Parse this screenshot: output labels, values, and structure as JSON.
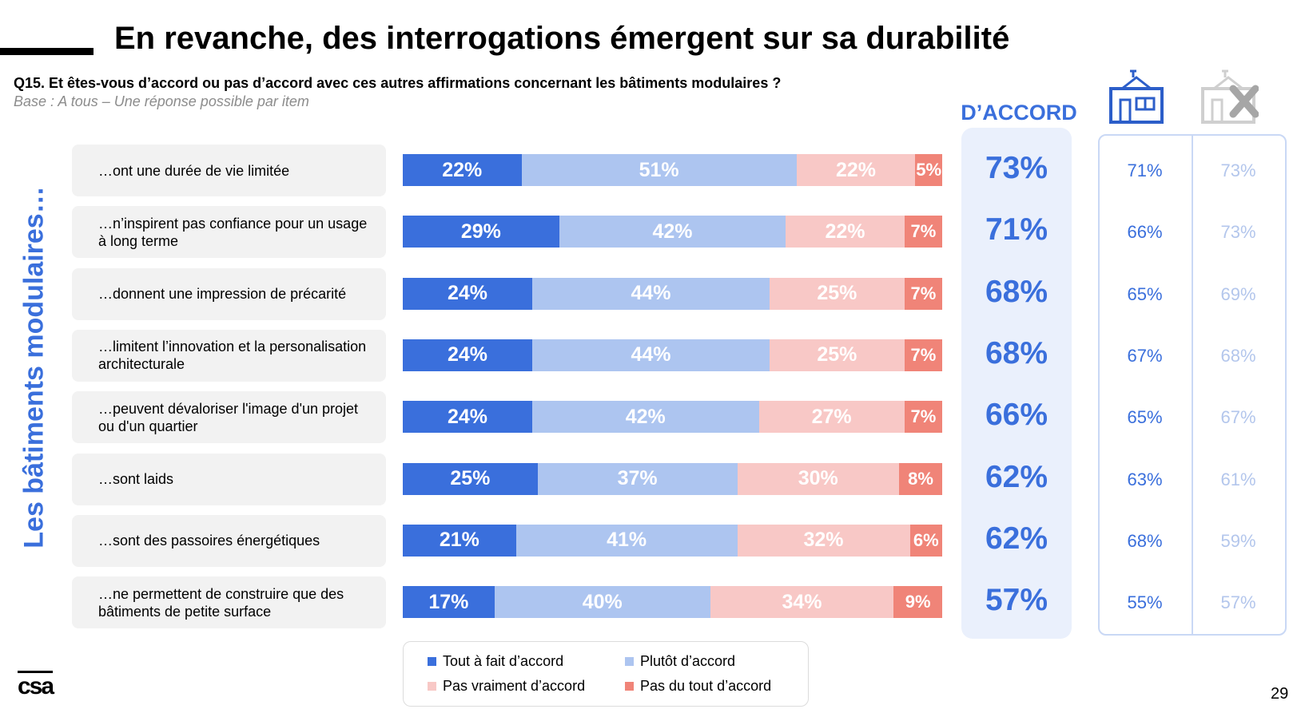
{
  "title": "En revanche, des interrogations émergent sur sa durabilité",
  "question": "Q15. Et êtes-vous d’accord ou pas d’accord avec ces autres affirmations concernant les bâtiments modulaires ?",
  "base": "Base : A tous – Une réponse possible par item",
  "side_label": "Les bâtiments modulaires…",
  "accord_header": "D’ACCORD",
  "icons": [
    "modular-building-icon",
    "modular-building-crossed-icon"
  ],
  "colors": {
    "tout_a_fait": "#3a6fdc",
    "plutot": "#adc5f0",
    "pas_vraiment": "#f8c8c6",
    "pas_du_tout": "#f08478"
  },
  "legend": [
    "Tout à fait d’accord",
    "Plutôt d’accord",
    "Pas vraiment d’accord",
    "Pas du tout d’accord"
  ],
  "page_number": "29",
  "logo": "csa",
  "chart_data": {
    "type": "bar",
    "stacked": true,
    "orientation": "horizontal",
    "categories": [
      "…ont une durée de vie limitée",
      "…n’inspirent pas confiance pour un usage à long terme",
      "…donnent une impression de précarité",
      "…limitent l’innovation et la personalisation architecturale",
      "…peuvent dévaloriser l'image d'un projet ou d'un quartier",
      "…sont laids",
      "…sont des passoires énergétiques",
      "…ne permettent de construire que des bâtiments de petite surface"
    ],
    "series": [
      {
        "name": "Tout à fait d’accord",
        "values": [
          22,
          29,
          24,
          24,
          24,
          25,
          21,
          17
        ]
      },
      {
        "name": "Plutôt d’accord",
        "values": [
          51,
          42,
          44,
          44,
          42,
          37,
          41,
          40
        ]
      },
      {
        "name": "Pas vraiment d’accord",
        "values": [
          22,
          22,
          25,
          25,
          27,
          30,
          32,
          34
        ]
      },
      {
        "name": "Pas du tout d’accord",
        "values": [
          5,
          7,
          7,
          7,
          7,
          8,
          6,
          9
        ]
      }
    ],
    "total_accord": [
      "73%",
      "71%",
      "68%",
      "68%",
      "66%",
      "62%",
      "62%",
      "57%"
    ],
    "compare_a": [
      "71%",
      "66%",
      "65%",
      "67%",
      "65%",
      "63%",
      "68%",
      "55%"
    ],
    "compare_b": [
      "73%",
      "73%",
      "69%",
      "68%",
      "67%",
      "61%",
      "59%",
      "57%"
    ],
    "xlim": [
      0,
      100
    ]
  }
}
